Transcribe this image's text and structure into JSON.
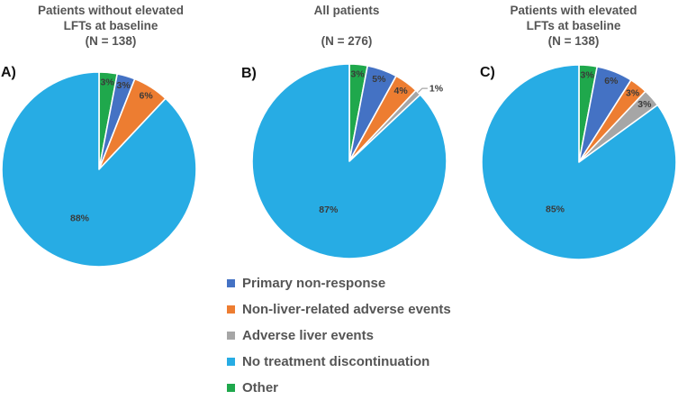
{
  "colors": {
    "primary_non_response": "#4472C4",
    "non_liver_adverse": "#ED7D31",
    "adverse_liver": "#A6A6A6",
    "no_discontinuation": "#27ACE4",
    "other": "#1FA84C",
    "title_text": "#555555",
    "value_label_text": "#3A3A3A",
    "panel_letter_text": "#111111",
    "leader_line": "#A6A6A6",
    "slice_border": "#FFFFFF"
  },
  "chart_data": [
    {
      "type": "pie",
      "panel_label": "A)",
      "title_lines": [
        "Patients without elevated",
        "LFTs at baseline",
        "(N = 138)"
      ],
      "start_angle_deg": 0,
      "direction": "clockwise",
      "slices": [
        {
          "label": "Other",
          "pct": 3,
          "color": "other",
          "text": "3%"
        },
        {
          "label": "Primary non-response",
          "pct": 3,
          "color": "primary_non_response",
          "text": "3%"
        },
        {
          "label": "Non-liver-related adverse events",
          "pct": 6,
          "color": "non_liver_adverse",
          "text": "6%"
        },
        {
          "label": "No treatment discontinuation",
          "pct": 88,
          "color": "no_discontinuation",
          "text": "88%"
        }
      ]
    },
    {
      "type": "pie",
      "panel_label": "B)",
      "title_lines": [
        "All patients",
        "",
        "(N = 276)"
      ],
      "start_angle_deg": 0,
      "direction": "clockwise",
      "slices": [
        {
          "label": "Other",
          "pct": 3,
          "color": "other",
          "text": "3%"
        },
        {
          "label": "Primary non-response",
          "pct": 5,
          "color": "primary_non_response",
          "text": "5%"
        },
        {
          "label": "Non-liver-related adverse events",
          "pct": 4,
          "color": "non_liver_adverse",
          "text": "4%"
        },
        {
          "label": "Adverse liver events",
          "pct": 1,
          "color": "adverse_liver",
          "text": "1%"
        },
        {
          "label": "No treatment discontinuation",
          "pct": 87,
          "color": "no_discontinuation",
          "text": "87%"
        }
      ]
    },
    {
      "type": "pie",
      "panel_label": "C)",
      "title_lines": [
        "Patients with elevated",
        "LFTs at baseline",
        "(N = 138)"
      ],
      "start_angle_deg": 0,
      "direction": "clockwise",
      "slices": [
        {
          "label": "Other",
          "pct": 3,
          "color": "other",
          "text": "3%"
        },
        {
          "label": "Primary non-response",
          "pct": 6,
          "color": "primary_non_response",
          "text": "6%"
        },
        {
          "label": "Non-liver-related adverse events",
          "pct": 3,
          "color": "non_liver_adverse",
          "text": "3%"
        },
        {
          "label": "Adverse liver events",
          "pct": 3,
          "color": "adverse_liver",
          "text": "3%"
        },
        {
          "label": "No treatment discontinuation",
          "pct": 85,
          "color": "no_discontinuation",
          "text": "85%"
        }
      ]
    }
  ],
  "legend": {
    "position": "bottom-center",
    "items": [
      {
        "label": "Primary non-response",
        "color": "primary_non_response"
      },
      {
        "label": "Non-liver-related adverse events",
        "color": "non_liver_adverse"
      },
      {
        "label": "Adverse liver events",
        "color": "adverse_liver"
      },
      {
        "label": "No treatment discontinuation",
        "color": "no_discontinuation"
      },
      {
        "label": "Other",
        "color": "other"
      }
    ]
  }
}
